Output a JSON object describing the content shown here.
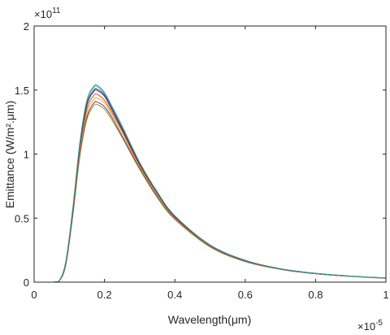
{
  "chart_data": {
    "type": "line",
    "xlabel": "Wavelength(μm)",
    "ylabel": "Emittance (W/m².μm)",
    "x_multiplier_label": "×10",
    "x_multiplier_exp": "-5",
    "y_multiplier_label": "×10",
    "y_multiplier_exp": "11",
    "xlim": [
      0,
      1
    ],
    "ylim": [
      0,
      2
    ],
    "x_ticks": [
      0,
      0.2,
      0.4,
      0.6,
      0.8,
      1
    ],
    "x_tick_labels": [
      "0",
      "0.2",
      "0.4",
      "0.6",
      "0.8",
      "1"
    ],
    "y_ticks": [
      0,
      0.5,
      1,
      1.5,
      2
    ],
    "y_tick_labels": [
      "0",
      "0.5",
      "1",
      "1.5",
      "2"
    ],
    "grid": false,
    "x": [
      0,
      0.05,
      0.07,
      0.09,
      0.11,
      0.13,
      0.15,
      0.17,
      0.18,
      0.2,
      0.22,
      0.25,
      0.3,
      0.35,
      0.4,
      0.5,
      0.6,
      0.7,
      0.8,
      0.9,
      1.0
    ],
    "series": [
      {
        "color": "#77ac30",
        "values": [
          0,
          0,
          0.004,
          0.13,
          0.52,
          0.98,
          1.27,
          1.38,
          1.385,
          1.35,
          1.27,
          1.13,
          0.88,
          0.66,
          0.49,
          0.275,
          0.16,
          0.1,
          0.065,
          0.045,
          0.03
        ]
      },
      {
        "color": "#7e2f8e",
        "values": [
          0,
          0,
          0.004,
          0.14,
          0.53,
          1.0,
          1.29,
          1.4,
          1.405,
          1.37,
          1.29,
          1.14,
          0.89,
          0.67,
          0.495,
          0.278,
          0.162,
          0.101,
          0.066,
          0.045,
          0.031
        ]
      },
      {
        "color": "#edb120",
        "values": [
          0,
          0,
          0.004,
          0.14,
          0.54,
          1.02,
          1.32,
          1.43,
          1.435,
          1.4,
          1.31,
          1.16,
          0.9,
          0.68,
          0.5,
          0.281,
          0.164,
          0.102,
          0.067,
          0.046,
          0.031
        ]
      },
      {
        "color": "#d95319",
        "values": [
          0,
          0,
          0.005,
          0.15,
          0.55,
          1.04,
          1.35,
          1.46,
          1.465,
          1.42,
          1.33,
          1.18,
          0.91,
          0.69,
          0.505,
          0.284,
          0.166,
          0.103,
          0.068,
          0.046,
          0.031
        ]
      },
      {
        "color": "#0072bd",
        "values": [
          0,
          0,
          0.005,
          0.15,
          0.56,
          1.06,
          1.38,
          1.49,
          1.495,
          1.45,
          1.35,
          1.19,
          0.92,
          0.695,
          0.51,
          0.287,
          0.168,
          0.104,
          0.068,
          0.047,
          0.032
        ]
      },
      {
        "color": "#4dbeee",
        "values": [
          0,
          0,
          0.005,
          0.16,
          0.57,
          1.08,
          1.41,
          1.52,
          1.525,
          1.47,
          1.37,
          1.21,
          0.93,
          0.7,
          0.515,
          0.29,
          0.17,
          0.105,
          0.069,
          0.047,
          0.032
        ]
      },
      {
        "color": "#a2142f",
        "values": [
          0,
          0,
          0.005,
          0.15,
          0.56,
          1.07,
          1.39,
          1.5,
          1.505,
          1.46,
          1.36,
          1.2,
          0.925,
          0.698,
          0.512,
          0.288,
          0.169,
          0.104,
          0.068,
          0.047,
          0.032
        ]
      },
      {
        "color": "#2a9d8f",
        "values": [
          0,
          0,
          0.005,
          0.16,
          0.58,
          1.09,
          1.42,
          1.53,
          1.535,
          1.48,
          1.38,
          1.22,
          0.935,
          0.705,
          0.518,
          0.291,
          0.171,
          0.105,
          0.069,
          0.047,
          0.032
        ]
      }
    ]
  }
}
